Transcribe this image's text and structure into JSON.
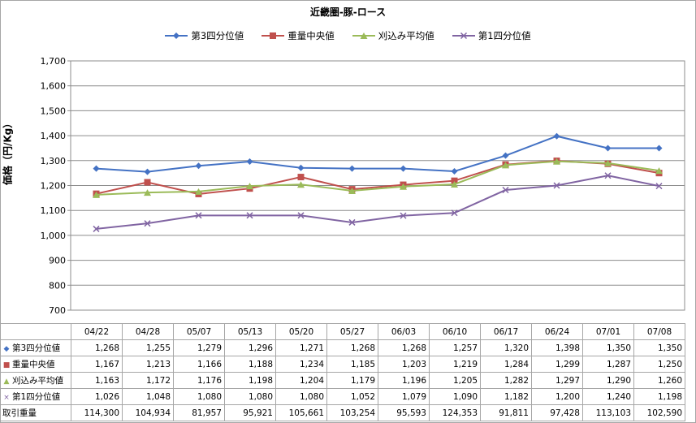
{
  "chart_data": {
    "type": "line",
    "title": "近畿圏-豚-ロース",
    "ylabel": "価格（円/Kg）",
    "ylim": [
      700,
      1700
    ],
    "yticks": [
      "700",
      "800",
      "900",
      "1,000",
      "1,100",
      "1,200",
      "1,300",
      "1,400",
      "1,500",
      "1,600",
      "1,700"
    ],
    "ytick_values": [
      700,
      800,
      900,
      1000,
      1100,
      1200,
      1300,
      1400,
      1500,
      1600,
      1700
    ],
    "grid": true,
    "legend_position": "top",
    "categories": [
      "04/22",
      "04/28",
      "05/07",
      "05/13",
      "05/20",
      "05/27",
      "06/03",
      "06/10",
      "06/17",
      "06/24",
      "07/01",
      "07/08"
    ],
    "series": [
      {
        "name": "第3四分位値",
        "color": "#4472c4",
        "marker": "diamond",
        "values": [
          1268,
          1255,
          1279,
          1296,
          1271,
          1268,
          1268,
          1257,
          1320,
          1398,
          1350,
          1350
        ],
        "labels": [
          "1,268",
          "1,255",
          "1,279",
          "1,296",
          "1,271",
          "1,268",
          "1,268",
          "1,257",
          "1,320",
          "1,398",
          "1,350",
          "1,350"
        ]
      },
      {
        "name": "重量中央値",
        "color": "#c0504d",
        "marker": "square",
        "values": [
          1167,
          1213,
          1166,
          1188,
          1234,
          1185,
          1203,
          1219,
          1284,
          1299,
          1287,
          1250
        ],
        "labels": [
          "1,167",
          "1,213",
          "1,166",
          "1,188",
          "1,234",
          "1,185",
          "1,203",
          "1,219",
          "1,284",
          "1,299",
          "1,287",
          "1,250"
        ]
      },
      {
        "name": "刈込み平均値",
        "color": "#9bbb59",
        "marker": "triangle",
        "values": [
          1163,
          1172,
          1176,
          1198,
          1204,
          1179,
          1196,
          1205,
          1282,
          1297,
          1290,
          1260
        ],
        "labels": [
          "1,163",
          "1,172",
          "1,176",
          "1,198",
          "1,204",
          "1,179",
          "1,196",
          "1,205",
          "1,282",
          "1,297",
          "1,290",
          "1,260"
        ]
      },
      {
        "name": "第1四分位値",
        "color": "#8064a2",
        "marker": "x",
        "values": [
          1026,
          1048,
          1080,
          1080,
          1080,
          1052,
          1079,
          1090,
          1182,
          1200,
          1240,
          1198
        ],
        "labels": [
          "1,026",
          "1,048",
          "1,080",
          "1,080",
          "1,080",
          "1,052",
          "1,079",
          "1,090",
          "1,182",
          "1,200",
          "1,240",
          "1,198"
        ]
      }
    ],
    "table_extra_row": {
      "name": "取引重量",
      "values": [
        114300,
        104934,
        81957,
        95921,
        105661,
        103254,
        95593,
        124353,
        91811,
        97428,
        113103,
        102590
      ],
      "labels": [
        "114,300",
        "104,934",
        "81,957",
        "95,921",
        "105,661",
        "103,254",
        "95,593",
        "124,353",
        "91,811",
        "97,428",
        "113,103",
        "102,590"
      ]
    }
  }
}
